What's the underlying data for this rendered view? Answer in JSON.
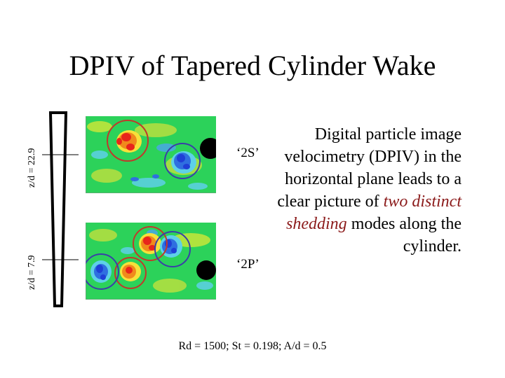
{
  "slide": {
    "title": "DPIV of Tapered Cylinder Wake",
    "z_label_top": "z/d = 22.9",
    "z_label_bottom": "z/d = 7.9",
    "mode_top": "‘2S’",
    "mode_bottom": "‘2P’",
    "description": {
      "part1": "Digital particle image velocimetry (DPIV) in the horizontal plane leads to a clear picture of ",
      "highlight": "two distinct shedding",
      "part2": " modes along the cylinder."
    },
    "parameters": "Rd = 1500; St = 0.198; A/d = 0.5",
    "colors": {
      "highlight": "#8b1a1a",
      "field_background": "#2cd25a",
      "vortex_red": "#e8251b",
      "vortex_blue": "#1f3fd6",
      "circle_red": "#c0392b",
      "circle_blue": "#3a3fa8"
    }
  }
}
